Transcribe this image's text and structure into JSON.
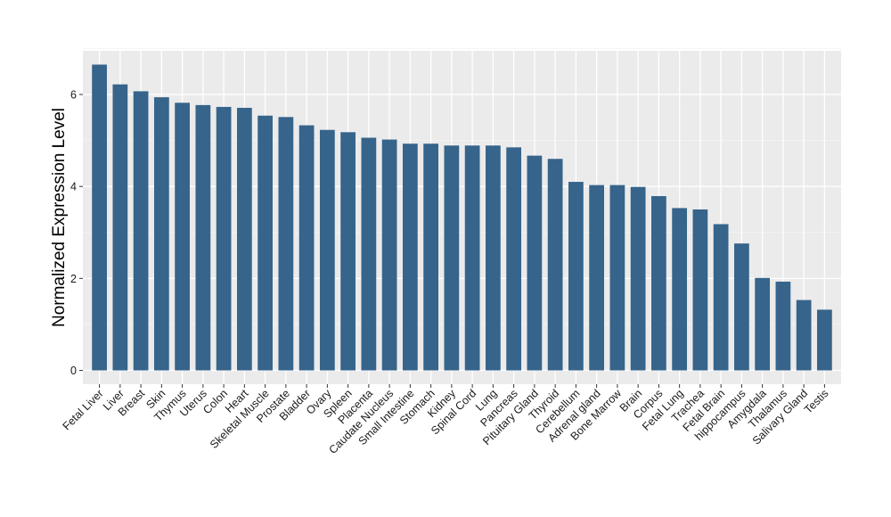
{
  "chart_data": {
    "type": "bar",
    "title": "",
    "xlabel": "",
    "ylabel": "Normalized Expression Level",
    "ylim": [
      -0.3,
      6.95
    ],
    "yticks": [
      0,
      2,
      4,
      6
    ],
    "grid": true,
    "legend": "none",
    "colors": {
      "bar": "#36648b",
      "panel": "#ebebeb",
      "grid_major": "#ffffff",
      "grid_minor": "#f5f5f5",
      "tick": "#333333"
    },
    "categories": [
      "Fetal Liver",
      "Liver",
      "Breast",
      "Skin",
      "Thymus",
      "Uterus",
      "Colon",
      "Heart",
      "Skeletal Muscle",
      "Prostate",
      "Bladder",
      "Ovary",
      "Spleen",
      "Placenta",
      "Caudate Nucleus",
      "Small Intestine",
      "Stomach",
      "Kidney",
      "Spinal Cord",
      "Lung",
      "Pancreas",
      "Pituitary Gland",
      "Thyroid",
      "Cerebellum",
      "Adrenal gland",
      "Bone Marrow",
      "Brain",
      "Corpus",
      "Fetal Lung",
      "Trachea",
      "Fetal Brain",
      "hippocampus",
      "Amygdala",
      "Thalamus",
      "Salivary Gland",
      "Testis"
    ],
    "values": [
      6.65,
      6.22,
      6.07,
      5.94,
      5.82,
      5.77,
      5.73,
      5.71,
      5.54,
      5.51,
      5.33,
      5.23,
      5.18,
      5.06,
      5.02,
      4.93,
      4.93,
      4.89,
      4.89,
      4.89,
      4.85,
      4.67,
      4.6,
      4.1,
      4.03,
      4.03,
      3.99,
      3.79,
      3.53,
      3.5,
      3.18,
      2.76,
      2.01,
      1.93,
      1.53,
      1.32
    ]
  }
}
